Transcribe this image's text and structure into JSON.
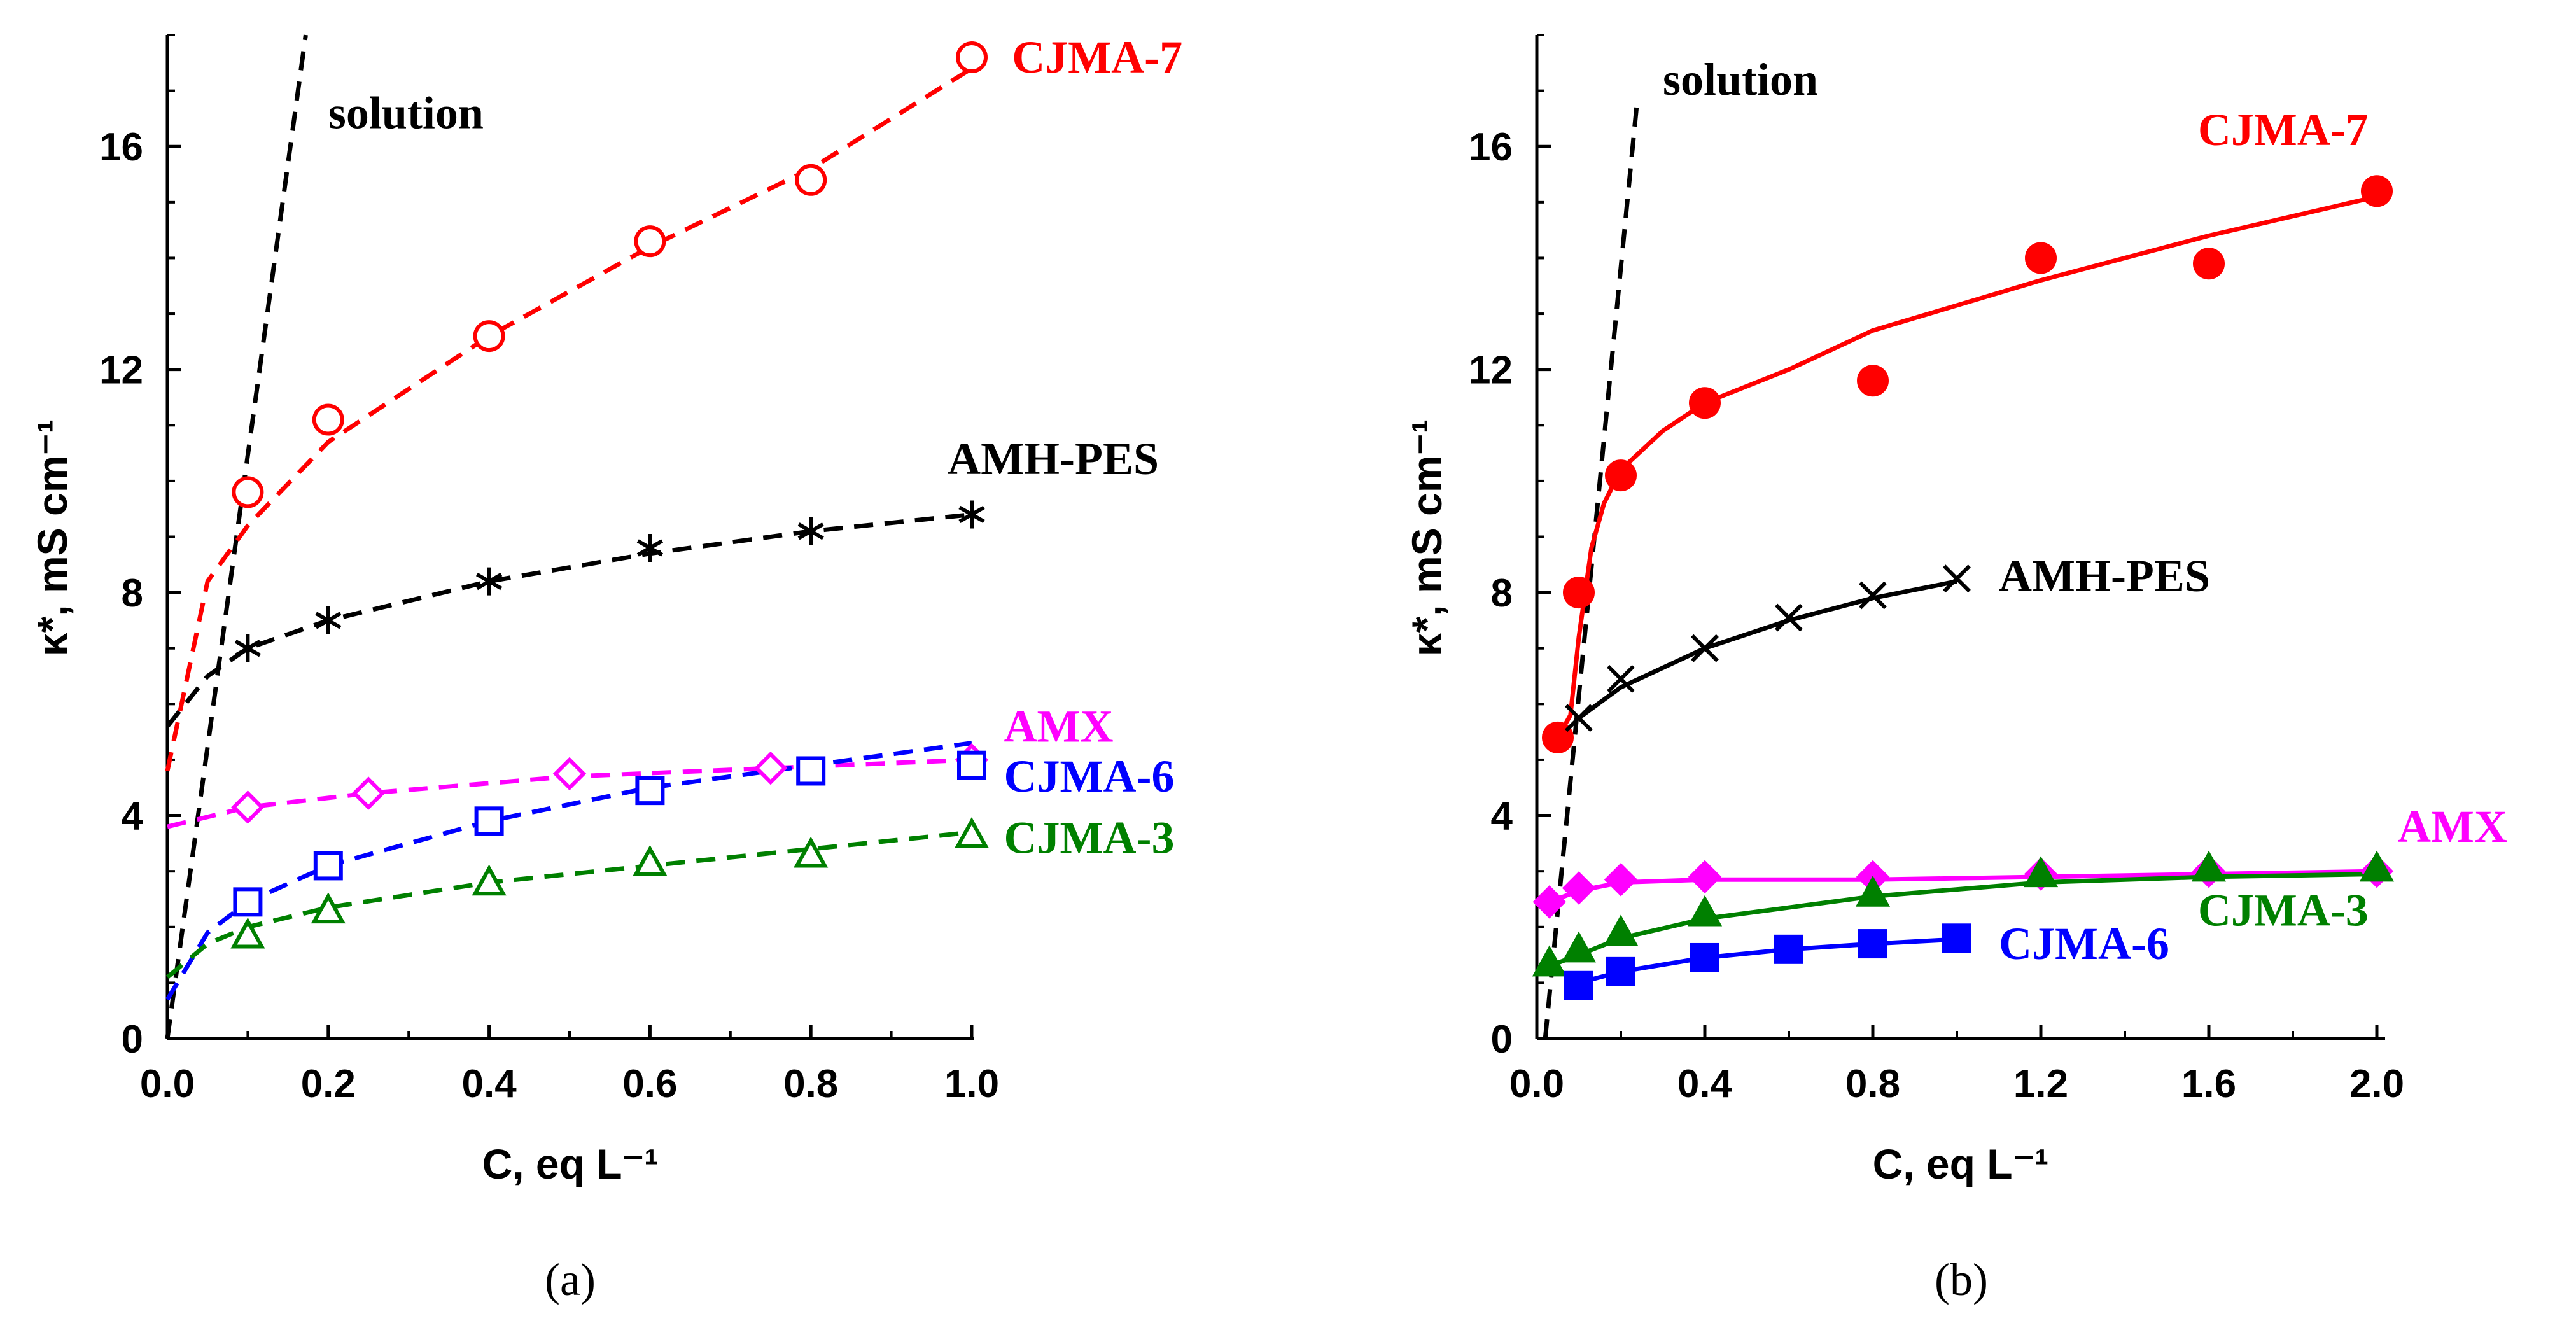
{
  "chart_data": [
    {
      "type": "scatter",
      "panel": "a",
      "caption": "(a)",
      "xlabel": "C, eq L⁻¹",
      "ylabel": "κ*, mS cm⁻¹",
      "xlim": [
        0,
        1.0
      ],
      "ylim": [
        0,
        18
      ],
      "xticks": [
        "0.0",
        "0.2",
        "0.4",
        "0.6",
        "0.8",
        "1.0"
      ],
      "xtick_values": [
        0,
        0.2,
        0.4,
        0.6,
        0.8,
        1.0
      ],
      "yticks": [
        "0",
        "4",
        "8",
        "12",
        "16"
      ],
      "ytick_values": [
        0,
        4,
        8,
        12,
        16
      ],
      "series": [
        {
          "name": "solution",
          "color": "#000000",
          "marker": "none",
          "line": "dashed",
          "curve": {
            "x": [
              0,
              0.172
            ],
            "y": [
              0,
              18
            ]
          },
          "label_at": [
            0.2,
            16.6
          ]
        },
        {
          "name": "CJMA-7",
          "color": "#ff0000",
          "marker": "circle-open",
          "line": "dashed",
          "x": [
            0.1,
            0.2,
            0.4,
            0.6,
            0.8,
            1.0
          ],
          "y": [
            9.8,
            11.1,
            12.6,
            14.3,
            15.4,
            17.6
          ],
          "curve": {
            "x": [
              0,
              0.05,
              0.1,
              0.2,
              0.4,
              0.6,
              0.8,
              1.0
            ],
            "y": [
              4.8,
              8.2,
              9.2,
              10.7,
              12.6,
              14.2,
              15.6,
              17.4
            ]
          },
          "label_at": [
            1.05,
            17.6
          ]
        },
        {
          "name": "AMH-PES",
          "color": "#000000",
          "marker": "asterisk",
          "line": "dashed",
          "x": [
            0.1,
            0.2,
            0.4,
            0.6,
            0.8,
            1.0
          ],
          "y": [
            7.0,
            7.5,
            8.2,
            8.8,
            9.1,
            9.4
          ],
          "curve": {
            "x": [
              0,
              0.05,
              0.1,
              0.2,
              0.4,
              0.6,
              0.8,
              1.0
            ],
            "y": [
              5.6,
              6.5,
              7.0,
              7.5,
              8.2,
              8.7,
              9.1,
              9.4
            ]
          },
          "label_at": [
            0.97,
            10.4
          ]
        },
        {
          "name": "AMX",
          "color": "#ff00ff",
          "marker": "diamond-open",
          "line": "dashed",
          "x": [
            0.1,
            0.25,
            0.5,
            0.75,
            1.0
          ],
          "y": [
            4.15,
            4.4,
            4.75,
            4.85,
            5.0
          ],
          "curve": {
            "x": [
              0,
              0.1,
              0.25,
              0.5,
              0.75,
              1.0
            ],
            "y": [
              3.8,
              4.15,
              4.4,
              4.7,
              4.85,
              5.0
            ]
          },
          "label_at": [
            1.04,
            5.6
          ]
        },
        {
          "name": "CJMA-6",
          "color": "#0000ff",
          "marker": "square-open",
          "line": "dashed",
          "x": [
            0.1,
            0.2,
            0.4,
            0.6,
            0.8,
            1.0
          ],
          "y": [
            2.45,
            3.1,
            3.9,
            4.45,
            4.8,
            4.9
          ],
          "curve": {
            "x": [
              0,
              0.05,
              0.1,
              0.2,
              0.4,
              0.6,
              0.8,
              1.0
            ],
            "y": [
              0.7,
              1.9,
              2.45,
              3.1,
              3.9,
              4.5,
              4.9,
              5.3
            ]
          },
          "label_at": [
            1.04,
            4.7
          ]
        },
        {
          "name": "CJMA-3",
          "color": "#008000",
          "marker": "triangle-open",
          "line": "dashed",
          "x": [
            0.1,
            0.2,
            0.4,
            0.6,
            0.8,
            1.0
          ],
          "y": [
            1.85,
            2.3,
            2.8,
            3.15,
            3.3,
            3.65
          ],
          "curve": {
            "x": [
              0,
              0.05,
              0.1,
              0.2,
              0.4,
              0.6,
              0.8,
              1.0
            ],
            "y": [
              1.1,
              1.7,
              2.0,
              2.35,
              2.8,
              3.1,
              3.4,
              3.7
            ]
          },
          "label_at": [
            1.04,
            3.6
          ]
        }
      ]
    },
    {
      "type": "scatter",
      "panel": "b",
      "caption": "(b)",
      "xlabel": "C, eq L⁻¹",
      "ylabel": "κ*,  mS cm⁻¹",
      "xlim": [
        0,
        2.0
      ],
      "ylim": [
        0,
        18
      ],
      "xticks": [
        "0.0",
        "0.4",
        "0.8",
        "1.2",
        "1.6",
        "2.0"
      ],
      "xtick_values": [
        0,
        0.4,
        0.8,
        1.2,
        1.6,
        2.0
      ],
      "yticks": [
        "0",
        "4",
        "8",
        "12",
        "16"
      ],
      "ytick_values": [
        0,
        4,
        8,
        12,
        16
      ],
      "series": [
        {
          "name": "solution",
          "color": "#000000",
          "marker": "none",
          "line": "dashed",
          "curve": {
            "x": [
              0.02,
              0.24
            ],
            "y": [
              0,
              16.9
            ]
          },
          "label_at": [
            0.3,
            17.2
          ]
        },
        {
          "name": "CJMA-7",
          "color": "#ff0000",
          "marker": "circle-filled",
          "line": "solid",
          "x": [
            0.05,
            0.1,
            0.2,
            0.4,
            0.8,
            1.2,
            1.6,
            2.0
          ],
          "y": [
            5.4,
            8.0,
            10.1,
            11.4,
            11.8,
            14.0,
            13.9,
            15.2
          ],
          "curve": {
            "x": [
              0.05,
              0.08,
              0.1,
              0.13,
              0.16,
              0.2,
              0.3,
              0.4,
              0.6,
              0.8,
              1.2,
              1.6,
              2.0
            ],
            "y": [
              5.4,
              5.8,
              7.2,
              8.8,
              9.6,
              10.2,
              10.9,
              11.4,
              12.0,
              12.7,
              13.6,
              14.4,
              15.1
            ]
          },
          "label_at": [
            1.98,
            16.3
          ]
        },
        {
          "name": "AMH-PES",
          "color": "#000000",
          "marker": "x",
          "line": "solid",
          "x": [
            0.1,
            0.2,
            0.4,
            0.6,
            0.8,
            1.0
          ],
          "y": [
            5.75,
            6.45,
            7.0,
            7.55,
            7.95,
            8.25
          ],
          "curve": {
            "x": [
              0.1,
              0.2,
              0.4,
              0.6,
              0.8,
              1.0
            ],
            "y": [
              5.75,
              6.3,
              7.0,
              7.5,
              7.9,
              8.2
            ]
          },
          "label_at": [
            1.1,
            8.3
          ]
        },
        {
          "name": "AMX",
          "color": "#ff00ff",
          "marker": "diamond-filled",
          "line": "solid",
          "x": [
            0.03,
            0.1,
            0.2,
            0.4,
            0.8,
            1.2,
            1.6,
            2.0
          ],
          "y": [
            2.45,
            2.7,
            2.85,
            2.9,
            2.9,
            2.95,
            3.0,
            3.0
          ],
          "curve": {
            "x": [
              0.03,
              0.1,
              0.2,
              0.4,
              0.8,
              1.2,
              1.6,
              2.0
            ],
            "y": [
              2.45,
              2.65,
              2.8,
              2.85,
              2.85,
              2.9,
              2.95,
              3.0
            ]
          },
          "label_at": [
            2.05,
            3.8
          ]
        },
        {
          "name": "CJMA-3",
          "color": "#008000",
          "marker": "triangle-filled",
          "line": "solid",
          "x": [
            0.03,
            0.1,
            0.2,
            0.4,
            0.8,
            1.2,
            1.6,
            2.0
          ],
          "y": [
            1.35,
            1.6,
            1.9,
            2.25,
            2.6,
            2.95,
            3.05,
            3.05
          ],
          "curve": {
            "x": [
              0.03,
              0.1,
              0.2,
              0.4,
              0.8,
              1.2,
              1.6,
              2.0
            ],
            "y": [
              1.3,
              1.5,
              1.8,
              2.15,
              2.55,
              2.8,
              2.9,
              2.95
            ]
          },
          "label_at": [
            1.98,
            2.3
          ]
        },
        {
          "name": "CJMA-6",
          "color": "#0000ff",
          "marker": "square-filled",
          "line": "solid",
          "x": [
            0.1,
            0.2,
            0.4,
            0.6,
            0.8,
            1.0
          ],
          "y": [
            0.95,
            1.2,
            1.45,
            1.6,
            1.7,
            1.8
          ],
          "curve": {
            "x": [
              0.1,
              0.2,
              0.4,
              0.6,
              0.8,
              1.0
            ],
            "y": [
              1.0,
              1.2,
              1.45,
              1.6,
              1.7,
              1.78
            ]
          },
          "label_at": [
            1.1,
            1.7
          ]
        }
      ]
    }
  ]
}
